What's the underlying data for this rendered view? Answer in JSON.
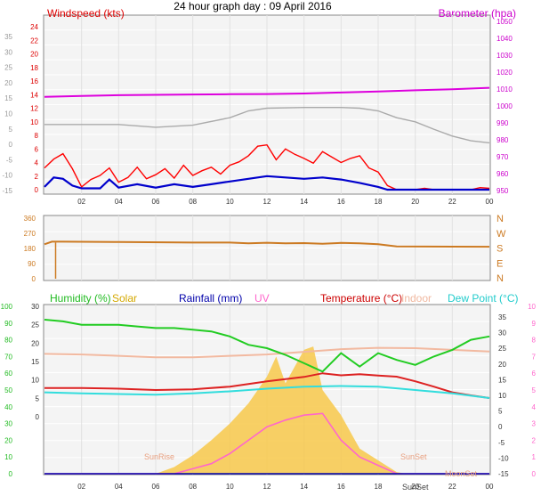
{
  "title": "24 hour graph day : 09 April 2016",
  "time_ticks": [
    "02",
    "04",
    "06",
    "08",
    "10",
    "12",
    "14",
    "16",
    "18",
    "20",
    "22",
    "00"
  ],
  "colors": {
    "wind": "#ff0000",
    "windAvg": "#0000cc",
    "baro": "#dd00dd",
    "gust": "#aaaaaa",
    "dir": "#cc7a22",
    "humidity": "#22cc22",
    "solar": "#f0c040",
    "rain": "#0000aa",
    "uv": "#ff66cc",
    "temp": "#cc0000",
    "indoor": "#f2b9a0",
    "dew": "#33dddd",
    "panel": "#f4f4f4",
    "grid": "#ffffff"
  },
  "chart_data": [
    {
      "type": "line",
      "name": "wind-baro",
      "left_label": "Windspeed (kts)",
      "right_label": "Barometer (hpa)",
      "left_ticks": [
        "24",
        "22",
        "20",
        "18",
        "16",
        "14",
        "12",
        "10",
        "8",
        "6",
        "4",
        "2",
        "0"
      ],
      "outer_left_ticks": [
        "35",
        "30",
        "25",
        "20",
        "15",
        "10",
        "5",
        "0",
        "-5",
        "-10",
        "-15"
      ],
      "right_ticks": [
        "1050",
        "1040",
        "1030",
        "1020",
        "1010",
        "1000",
        "990",
        "980",
        "970",
        "960",
        "950"
      ],
      "barometer_hpa": [
        [
          0,
          1007
        ],
        [
          2,
          1007.5
        ],
        [
          4,
          1008
        ],
        [
          6,
          1008.2
        ],
        [
          8,
          1008.4
        ],
        [
          10,
          1008.6
        ],
        [
          12,
          1008.7
        ],
        [
          14,
          1009
        ],
        [
          16,
          1009.6
        ],
        [
          18,
          1010.2
        ],
        [
          20,
          1011
        ],
        [
          22,
          1011.6
        ],
        [
          24,
          1012.5
        ]
      ],
      "gray_series": [
        [
          0,
          9.6
        ],
        [
          2,
          9.6
        ],
        [
          4,
          9.6
        ],
        [
          6,
          9.2
        ],
        [
          8,
          9.5
        ],
        [
          10,
          10.6
        ],
        [
          11,
          11.6
        ],
        [
          12,
          12
        ],
        [
          14,
          12.1
        ],
        [
          16,
          12.1
        ],
        [
          17,
          12
        ],
        [
          18,
          11.6
        ],
        [
          19,
          10.6
        ],
        [
          20,
          10
        ],
        [
          21,
          8.9
        ],
        [
          22,
          7.9
        ],
        [
          23,
          7.2
        ],
        [
          24,
          6.9
        ]
      ],
      "wind_avg_kts": [
        [
          0,
          0.4
        ],
        [
          0.5,
          1.8
        ],
        [
          1,
          1.6
        ],
        [
          1.5,
          0.6
        ],
        [
          2,
          0.2
        ],
        [
          3,
          0.2
        ],
        [
          3.5,
          1.5
        ],
        [
          4,
          0.3
        ],
        [
          5,
          0.8
        ],
        [
          6,
          0.3
        ],
        [
          7,
          0.8
        ],
        [
          8,
          0.4
        ],
        [
          9,
          0.8
        ],
        [
          10,
          1.2
        ],
        [
          11,
          1.6
        ],
        [
          12,
          2
        ],
        [
          13,
          1.8
        ],
        [
          14,
          1.6
        ],
        [
          15,
          1.8
        ],
        [
          16,
          1.5
        ],
        [
          17,
          1
        ],
        [
          18,
          0.4
        ],
        [
          18.5,
          0
        ],
        [
          24,
          0
        ]
      ],
      "wind_gust_kts": [
        [
          0,
          3.2
        ],
        [
          0.5,
          4.5
        ],
        [
          1,
          5.3
        ],
        [
          1.5,
          3.1
        ],
        [
          2,
          0.4
        ],
        [
          2.5,
          1.5
        ],
        [
          3,
          2.1
        ],
        [
          3.5,
          3.2
        ],
        [
          4,
          1.1
        ],
        [
          4.5,
          1.8
        ],
        [
          5,
          3.3
        ],
        [
          5.5,
          1.6
        ],
        [
          6,
          2.2
        ],
        [
          6.5,
          3.1
        ],
        [
          7,
          1.7
        ],
        [
          7.5,
          3.6
        ],
        [
          8,
          2.1
        ],
        [
          8.5,
          2.8
        ],
        [
          9,
          3.3
        ],
        [
          9.5,
          2.3
        ],
        [
          10,
          3.6
        ],
        [
          10.5,
          4.1
        ],
        [
          11,
          5
        ],
        [
          11.5,
          6.4
        ],
        [
          12,
          6.6
        ],
        [
          12.5,
          4.4
        ],
        [
          13,
          6
        ],
        [
          13.5,
          5.2
        ],
        [
          14,
          4.6
        ],
        [
          14.5,
          3.9
        ],
        [
          15,
          5.6
        ],
        [
          15.5,
          4.8
        ],
        [
          16,
          4
        ],
        [
          16.5,
          4.6
        ],
        [
          17,
          5
        ],
        [
          17.5,
          3.2
        ],
        [
          18,
          2.6
        ],
        [
          18.5,
          0.6
        ],
        [
          19,
          0
        ],
        [
          20,
          0
        ],
        [
          20.5,
          0.2
        ],
        [
          21,
          0
        ],
        [
          23,
          0
        ],
        [
          23.5,
          0.3
        ],
        [
          24,
          0.2
        ]
      ]
    },
    {
      "type": "line",
      "name": "wind-direction",
      "left_ticks": [
        "360",
        "270",
        "180",
        "90",
        "0"
      ],
      "right_ticks": [
        "N",
        "W",
        "S",
        "E",
        "N"
      ],
      "direction_deg": [
        [
          0,
          205
        ],
        [
          0.4,
          220
        ],
        [
          1,
          220
        ],
        [
          4,
          218
        ],
        [
          8,
          215
        ],
        [
          10,
          215
        ],
        [
          11,
          210
        ],
        [
          12,
          214
        ],
        [
          13,
          210
        ],
        [
          14,
          212
        ],
        [
          15,
          208
        ],
        [
          16,
          213
        ],
        [
          17,
          210
        ],
        [
          18,
          205
        ],
        [
          19,
          192
        ],
        [
          24,
          190
        ]
      ],
      "spike": {
        "hour": 0.6,
        "deg": 0
      }
    },
    {
      "type": "line",
      "name": "weather",
      "legend": [
        "Humidity (%)",
        "Solar",
        "Rainfall (mm)",
        "UV",
        "Temperature (°C)",
        "Indoor",
        "Dew Point (°C)"
      ],
      "left_ticks": [
        "100",
        "90",
        "80",
        "70",
        "60",
        "50",
        "40",
        "30",
        "20",
        "10",
        "0"
      ],
      "temp_left_ticks": [
        "30",
        "25",
        "20",
        "15",
        "10",
        "5",
        "0"
      ],
      "right_ticks": [
        "35",
        "30",
        "25",
        "20",
        "15",
        "10",
        "5",
        "0",
        "-5",
        "-10",
        "-15"
      ],
      "uv_ticks": [
        "10",
        "9",
        "8",
        "7",
        "6",
        "5",
        "4",
        "3",
        "2",
        "1",
        "0"
      ],
      "annotations": [
        "SunRise",
        "SunSet",
        "SunSet",
        "MoonSet"
      ],
      "humidity_pct": [
        [
          0,
          92
        ],
        [
          1,
          91
        ],
        [
          2,
          89
        ],
        [
          3,
          89
        ],
        [
          4,
          89
        ],
        [
          5,
          88
        ],
        [
          6,
          87
        ],
        [
          7,
          87
        ],
        [
          8,
          86
        ],
        [
          9,
          85
        ],
        [
          10,
          82
        ],
        [
          11,
          77
        ],
        [
          12,
          75
        ],
        [
          13,
          71
        ],
        [
          14,
          66
        ],
        [
          15,
          61
        ],
        [
          16,
          72
        ],
        [
          17,
          64
        ],
        [
          18,
          72
        ],
        [
          19,
          68
        ],
        [
          20,
          65
        ],
        [
          21,
          70
        ],
        [
          22,
          74
        ],
        [
          23,
          80
        ],
        [
          24,
          82
        ]
      ],
      "indoor": [
        [
          0,
          20.8
        ],
        [
          2,
          20.6
        ],
        [
          4,
          20.2
        ],
        [
          6,
          19.8
        ],
        [
          8,
          19.8
        ],
        [
          10,
          20.2
        ],
        [
          12,
          20.6
        ],
        [
          14,
          21.4
        ],
        [
          16,
          22.2
        ],
        [
          18,
          22.6
        ],
        [
          20,
          22.5
        ],
        [
          22,
          22
        ],
        [
          24,
          21.5
        ]
      ],
      "temperature_c": [
        [
          0,
          10.6
        ],
        [
          2,
          10.6
        ],
        [
          4,
          10.4
        ],
        [
          6,
          10
        ],
        [
          8,
          10.2
        ],
        [
          10,
          11
        ],
        [
          12,
          12.6
        ],
        [
          14,
          13.9
        ],
        [
          15,
          15
        ],
        [
          16,
          14.4
        ],
        [
          17,
          14.7
        ],
        [
          18,
          14.3
        ],
        [
          19,
          14
        ],
        [
          20,
          12.6
        ],
        [
          21,
          11
        ],
        [
          22,
          9.3
        ],
        [
          23,
          8.4
        ],
        [
          24,
          7.6
        ]
      ],
      "dew_point_c": [
        [
          0,
          9.3
        ],
        [
          2,
          9
        ],
        [
          4,
          8.8
        ],
        [
          6,
          8.6
        ],
        [
          8,
          9
        ],
        [
          10,
          9.6
        ],
        [
          12,
          10.4
        ],
        [
          14,
          11
        ],
        [
          16,
          11.2
        ],
        [
          18,
          11
        ],
        [
          20,
          10
        ],
        [
          22,
          9
        ],
        [
          24,
          7.6
        ]
      ],
      "solar_pct": [
        [
          0,
          0
        ],
        [
          6,
          0
        ],
        [
          7,
          4
        ],
        [
          8,
          11
        ],
        [
          9,
          20
        ],
        [
          10,
          30
        ],
        [
          11,
          42
        ],
        [
          12,
          58
        ],
        [
          12.5,
          70
        ],
        [
          13,
          54
        ],
        [
          14,
          74
        ],
        [
          14.5,
          76
        ],
        [
          15,
          50
        ],
        [
          16,
          35
        ],
        [
          17,
          15
        ],
        [
          18,
          8
        ],
        [
          19,
          1
        ],
        [
          19.5,
          0
        ],
        [
          24,
          0
        ]
      ],
      "uv_pct": [
        [
          0,
          0
        ],
        [
          7,
          0
        ],
        [
          8,
          3
        ],
        [
          9,
          6
        ],
        [
          10,
          12
        ],
        [
          11,
          20
        ],
        [
          12,
          28
        ],
        [
          13,
          32
        ],
        [
          14,
          35
        ],
        [
          15,
          36
        ],
        [
          16,
          20
        ],
        [
          17,
          10
        ],
        [
          18,
          5
        ],
        [
          19,
          0
        ],
        [
          24,
          0
        ]
      ]
    }
  ]
}
